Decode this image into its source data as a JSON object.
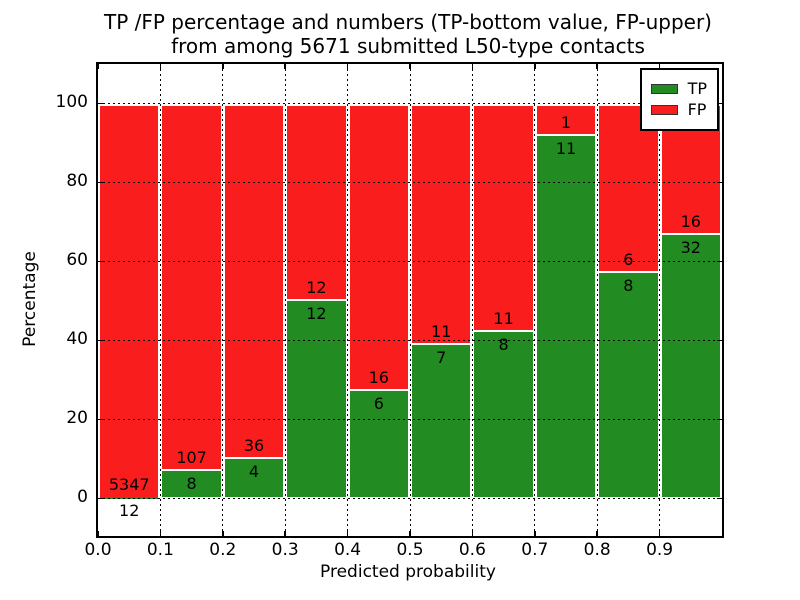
{
  "chart_data": {
    "type": "bar",
    "stacked": true,
    "title_line1": "TP /FP percentage and numbers (TP-bottom value, FP-upper)",
    "title_line2": "from among 5671 submitted L50-type contacts",
    "title": "TP /FP percentage and numbers (TP-bottom value, FP-upper) from among 5671 submitted L50-type contacts",
    "total_contacts": 5671,
    "xlabel": "Predicted probability",
    "ylabel": "Percentage",
    "x_tick_labels": [
      "0.0",
      "0.1",
      "0.2",
      "0.3",
      "0.4",
      "0.5",
      "0.6",
      "0.7",
      "0.8",
      "0.9"
    ],
    "y_tick_values": [
      0,
      20,
      40,
      60,
      80,
      100
    ],
    "xlim": [
      0.0,
      1.0
    ],
    "ylim": [
      -9.5,
      110
    ],
    "grid": "dotted, both axes",
    "bin_width": 0.1,
    "categories": [
      "0.0-0.1",
      "0.1-0.2",
      "0.2-0.3",
      "0.3-0.4",
      "0.4-0.5",
      "0.5-0.6",
      "0.6-0.7",
      "0.7-0.8",
      "0.8-0.9",
      "0.9-1.0"
    ],
    "series": [
      {
        "name": "TP",
        "color": "#228b22",
        "values": [
          12,
          8,
          4,
          12,
          6,
          7,
          8,
          11,
          8,
          32
        ]
      },
      {
        "name": "FP",
        "color": "#fa1d1d",
        "values": [
          5347,
          107,
          36,
          12,
          16,
          11,
          11,
          1,
          6,
          16
        ]
      }
    ],
    "tp_percent_heights": [
      0.22,
      6.96,
      10.0,
      50.0,
      27.27,
      38.89,
      42.11,
      91.67,
      57.14,
      66.67
    ],
    "legend": {
      "position": "upper right",
      "entries": [
        {
          "label": "TP",
          "color": "#228b22"
        },
        {
          "label": "FP",
          "color": "#fa1d1d"
        }
      ]
    }
  },
  "colors": {
    "tp_green": "#228b22",
    "fp_red": "#fa1d1d",
    "axes_frame": "#000000",
    "grid": "#000000",
    "background": "#ffffff",
    "bar_edge": "#ffffff"
  }
}
